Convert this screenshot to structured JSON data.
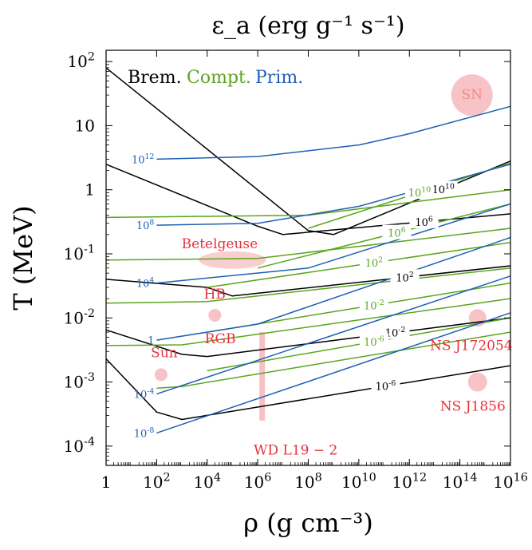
{
  "chart_data": {
    "type": "line",
    "title": "ε_a (erg g⁻¹ s⁻¹)",
    "xlabel": "ρ (g cm⁻³)",
    "ylabel": "T (MeV)",
    "xscale": "log",
    "yscale": "log",
    "xlim": [
      1,
      1e+16
    ],
    "ylim": [
      5e-05,
      150
    ],
    "x_ticks": [
      {
        "v": 1,
        "label": "1"
      },
      {
        "v": 100.0,
        "label": "10^2"
      },
      {
        "v": 10000.0,
        "label": "10^4"
      },
      {
        "v": 1000000.0,
        "label": "10^6"
      },
      {
        "v": 100000000.0,
        "label": "10^8"
      },
      {
        "v": 10000000000.0,
        "label": "10^10"
      },
      {
        "v": 1000000000000.0,
        "label": "10^12"
      },
      {
        "v": 100000000000000.0,
        "label": "10^14"
      },
      {
        "v": 1e+16,
        "label": "10^16"
      }
    ],
    "y_ticks": [
      {
        "v": 0.0001,
        "label": "10^-4"
      },
      {
        "v": 0.001,
        "label": "10^-3"
      },
      {
        "v": 0.01,
        "label": "10^-2"
      },
      {
        "v": 0.1,
        "label": "10^-1"
      },
      {
        "v": 1,
        "label": "1"
      },
      {
        "v": 10,
        "label": "10"
      },
      {
        "v": 100,
        "label": "10^2"
      }
    ],
    "legend": [
      {
        "label": "Brem.",
        "color": "#000000"
      },
      {
        "label": "Compt.",
        "color": "#5aa51d"
      },
      {
        "label": "Prim.",
        "color": "#1f5fb4"
      }
    ],
    "colors": {
      "brem": "#000000",
      "compt": "#5aa51d",
      "prim": "#1f5fb4",
      "astro": "#e8323a",
      "astro_fill": "#f6b9bc"
    },
    "series": [
      {
        "process": "brem",
        "label": "10^10",
        "points": [
          [
            1,
            80
          ],
          [
            100000000.0,
            0.23
          ],
          [
            1000000000.0,
            0.2
          ],
          [
            1e+16,
            2.8
          ]
        ]
      },
      {
        "process": "brem",
        "label": "10^6",
        "points": [
          [
            1,
            2.5
          ],
          [
            1000000.0,
            0.27
          ],
          [
            10000000.0,
            0.2
          ],
          [
            1e+16,
            0.42
          ]
        ]
      },
      {
        "process": "brem",
        "label": "10^2",
        "points": [
          [
            1,
            0.04
          ],
          [
            10000.0,
            0.03
          ],
          [
            100000.0,
            0.022
          ],
          [
            1e+16,
            0.065
          ]
        ]
      },
      {
        "process": "brem",
        "label": "10^-2",
        "points": [
          [
            1,
            0.0065
          ],
          [
            1000.0,
            0.0027
          ],
          [
            10000.0,
            0.0025
          ],
          [
            1e+16,
            0.01
          ]
        ]
      },
      {
        "process": "brem",
        "label": "10^-6",
        "points": [
          [
            1,
            0.0023
          ],
          [
            100.0,
            0.00034
          ],
          [
            1000.0,
            0.00026
          ],
          [
            1e+16,
            0.0018
          ]
        ]
      },
      {
        "process": "compt",
        "label": "10^10",
        "points": [
          [
            100000000.0,
            0.25
          ],
          [
            1e+16,
            2.6
          ]
        ]
      },
      {
        "process": "compt",
        "label": "10^6",
        "points": [
          [
            1000000.0,
            0.06
          ],
          [
            1e+16,
            0.6
          ]
        ]
      },
      {
        "process": "compt",
        "label": "10^2",
        "points": [
          [
            10000.0,
            0.03
          ],
          [
            1e+16,
            0.15
          ]
        ]
      },
      {
        "process": "compt",
        "label": "10^-2",
        "points": [
          [
            10000.0,
            0.006
          ],
          [
            1e+16,
            0.035
          ]
        ]
      },
      {
        "process": "compt",
        "label": "10^-6",
        "points": [
          [
            10000.0,
            0.0015
          ],
          [
            1e+16,
            0.01
          ]
        ]
      },
      {
        "process": "compt",
        "label": "",
        "points": [
          [
            1,
            0.37
          ],
          [
            100000000.0,
            0.4
          ],
          [
            1e+16,
            1.0
          ]
        ]
      },
      {
        "process": "compt",
        "label": "",
        "points": [
          [
            1,
            0.08
          ],
          [
            1000000.0,
            0.085
          ],
          [
            1e+16,
            0.25
          ]
        ]
      },
      {
        "process": "compt",
        "label": "",
        "points": [
          [
            1,
            0.017
          ],
          [
            10000.0,
            0.018
          ],
          [
            1e+16,
            0.06
          ]
        ]
      },
      {
        "process": "compt",
        "label": "",
        "points": [
          [
            1,
            0.0037
          ],
          [
            1000.0,
            0.0038
          ],
          [
            1e+16,
            0.02
          ]
        ]
      },
      {
        "process": "compt",
        "label": "",
        "points": [
          [
            100.0,
            0.0008
          ],
          [
            1000.0,
            0.00085
          ],
          [
            1e+16,
            0.006
          ]
        ]
      },
      {
        "process": "prim",
        "label": "10^12",
        "points": [
          [
            100.0,
            3.0
          ],
          [
            1000000.0,
            3.3
          ],
          [
            10000000000.0,
            5.0
          ],
          [
            1000000000000.0,
            7.5
          ],
          [
            1e+16,
            20
          ]
        ]
      },
      {
        "process": "prim",
        "label": "10^8",
        "points": [
          [
            100.0,
            0.28
          ],
          [
            1000000.0,
            0.3
          ],
          [
            10000000000.0,
            0.55
          ],
          [
            1e+16,
            2.5
          ]
        ]
      },
      {
        "process": "prim",
        "label": "10^4",
        "points": [
          [
            100.0,
            0.035
          ],
          [
            100000000.0,
            0.06
          ],
          [
            1e+16,
            0.6
          ]
        ]
      },
      {
        "process": "prim",
        "label": "1",
        "points": [
          [
            100.0,
            0.0045
          ],
          [
            1000000.0,
            0.008
          ],
          [
            1e+16,
            0.18
          ]
        ]
      },
      {
        "process": "prim",
        "label": "10^-4",
        "points": [
          [
            100.0,
            0.00065
          ],
          [
            1e+16,
            0.045
          ]
        ]
      },
      {
        "process": "prim",
        "label": "10^-8",
        "points": [
          [
            100.0,
            0.00016
          ],
          [
            1e+16,
            0.012
          ]
        ]
      }
    ],
    "objects": [
      {
        "name": "SN",
        "rho": 300000000000000.0,
        "T": 30
      },
      {
        "name": "Betelgeuse",
        "rho": 100000.0,
        "T": 0.08
      },
      {
        "name": "HB",
        "rho": 20000.0,
        "T": 0.011
      },
      {
        "name": "RGB",
        "rho": 1000000.0,
        "T": 0.0045
      },
      {
        "name": "Sun",
        "rho": 150.0,
        "T": 0.0013
      },
      {
        "name": "WD L19 − 2",
        "rho": 1500000.0,
        "T": 0.001
      },
      {
        "name": "NS J172054",
        "rho": 500000000000000.0,
        "T": 0.01
      },
      {
        "name": "NS J1856",
        "rho": 500000000000000.0,
        "T": 0.001
      }
    ]
  }
}
